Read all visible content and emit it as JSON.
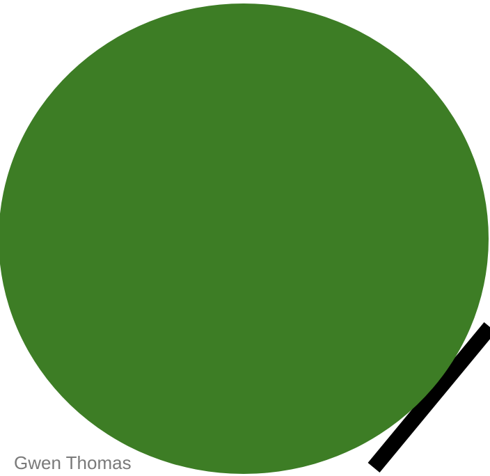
{
  "colors": {
    "background": "#ffffff",
    "circle_fill": "#3d7d25",
    "stroke": "#000000",
    "credit_text": "#7a7a7a"
  },
  "credit": {
    "name": "Gwen Thomas"
  }
}
